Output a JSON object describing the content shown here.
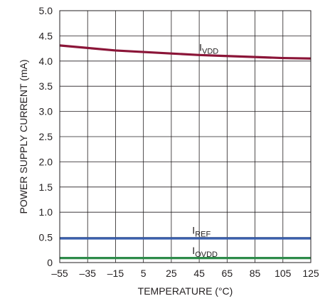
{
  "chart_data": {
    "type": "line",
    "title": "",
    "xlabel": "TEMPERATURE (°C)",
    "ylabel": "POWER SUPPLY CURRENT (mA)",
    "xlim": [
      -55,
      125
    ],
    "ylim": [
      0,
      5.0
    ],
    "x_ticks": [
      -55,
      -35,
      -15,
      5,
      25,
      45,
      65,
      85,
      105,
      125
    ],
    "x_tick_labels": [
      "–55",
      "–35",
      "–15",
      "5",
      "25",
      "45",
      "65",
      "85",
      "105",
      "125"
    ],
    "y_ticks": [
      0,
      0.5,
      1.0,
      1.5,
      2.0,
      2.5,
      3.0,
      3.5,
      4.0,
      4.5,
      5.0
    ],
    "y_tick_labels": [
      "0",
      "0.5",
      "1.0",
      "1.5",
      "2.0",
      "2.5",
      "3.0",
      "3.5",
      "4.0",
      "4.5",
      "5.0"
    ],
    "grid": true,
    "legend": "none",
    "series": [
      {
        "name": "I",
        "subscript": "VDD",
        "color": "#8b1538",
        "label_at": [
          45,
          4.2
        ],
        "x": [
          -55,
          -35,
          -15,
          5,
          25,
          45,
          65,
          85,
          105,
          125
        ],
        "y": [
          4.31,
          4.26,
          4.21,
          4.18,
          4.15,
          4.12,
          4.1,
          4.08,
          4.06,
          4.05
        ]
      },
      {
        "name": "I",
        "subscript": "REF",
        "color": "#3a5fad",
        "label_at": [
          40,
          0.57
        ],
        "x": [
          -55,
          125
        ],
        "y": [
          0.48,
          0.48
        ]
      },
      {
        "name": "I",
        "subscript": "OVDD",
        "color": "#2e8b4a",
        "label_at": [
          40,
          0.17
        ],
        "x": [
          -55,
          125
        ],
        "y": [
          0.09,
          0.09
        ]
      }
    ]
  }
}
